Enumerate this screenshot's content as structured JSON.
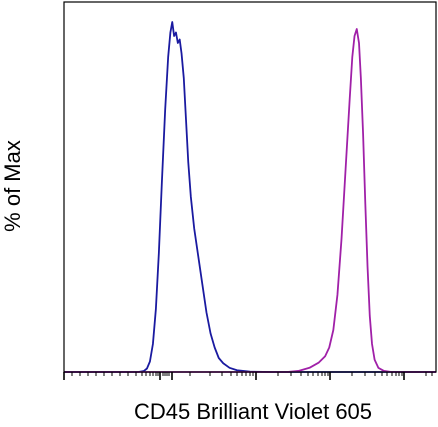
{
  "chart_data": {
    "type": "line",
    "title": "",
    "xlabel": "CD45 Brilliant Violet 605",
    "ylabel": "% of Max",
    "xlim": [
      0,
      100
    ],
    "ylim": [
      0,
      100
    ],
    "grid": false,
    "legend": "none",
    "x_tick_labels": [],
    "y_tick_labels": [],
    "series": [
      {
        "color": "#1a1aa0",
        "points": [
          [
            0,
            0
          ],
          [
            20,
            0
          ],
          [
            21.5,
            0.3
          ],
          [
            22.3,
            1
          ],
          [
            23.1,
            3
          ],
          [
            23.9,
            8
          ],
          [
            24.7,
            18
          ],
          [
            25.5,
            34
          ],
          [
            26.3,
            54
          ],
          [
            27.2,
            75
          ],
          [
            28,
            90
          ],
          [
            28.6,
            97
          ],
          [
            29.1,
            100
          ],
          [
            29.6,
            96
          ],
          [
            30.1,
            97
          ],
          [
            30.6,
            94
          ],
          [
            31.1,
            95
          ],
          [
            31.6,
            91
          ],
          [
            32.2,
            84
          ],
          [
            32.8,
            72
          ],
          [
            33.4,
            60
          ],
          [
            34.1,
            50
          ],
          [
            35,
            41
          ],
          [
            36.1,
            33
          ],
          [
            37.2,
            25
          ],
          [
            38.3,
            17
          ],
          [
            39.4,
            11
          ],
          [
            40.5,
            7
          ],
          [
            41.6,
            4
          ],
          [
            42.8,
            2.5
          ],
          [
            44.5,
            1.2
          ],
          [
            46.5,
            0.5
          ],
          [
            50,
            0.1
          ],
          [
            56,
            0
          ],
          [
            100,
            0
          ]
        ]
      },
      {
        "color": "#a020a8",
        "points": [
          [
            0,
            0
          ],
          [
            60,
            0
          ],
          [
            63,
            0.3
          ],
          [
            66,
            1.2
          ],
          [
            68.5,
            2.7
          ],
          [
            70.2,
            4.5
          ],
          [
            71.3,
            7
          ],
          [
            72.4,
            12
          ],
          [
            73.5,
            22
          ],
          [
            74.6,
            38
          ],
          [
            75.7,
            58
          ],
          [
            76.8,
            78
          ],
          [
            77.5,
            90
          ],
          [
            78.1,
            96
          ],
          [
            78.7,
            98
          ],
          [
            79.3,
            94
          ],
          [
            79.8,
            84
          ],
          [
            80.4,
            68
          ],
          [
            81,
            48
          ],
          [
            81.6,
            30
          ],
          [
            82.2,
            16
          ],
          [
            82.8,
            8
          ],
          [
            83.5,
            3.5
          ],
          [
            84.5,
            1.2
          ],
          [
            86,
            0.3
          ],
          [
            88,
            0
          ],
          [
            100,
            0
          ]
        ]
      }
    ]
  }
}
